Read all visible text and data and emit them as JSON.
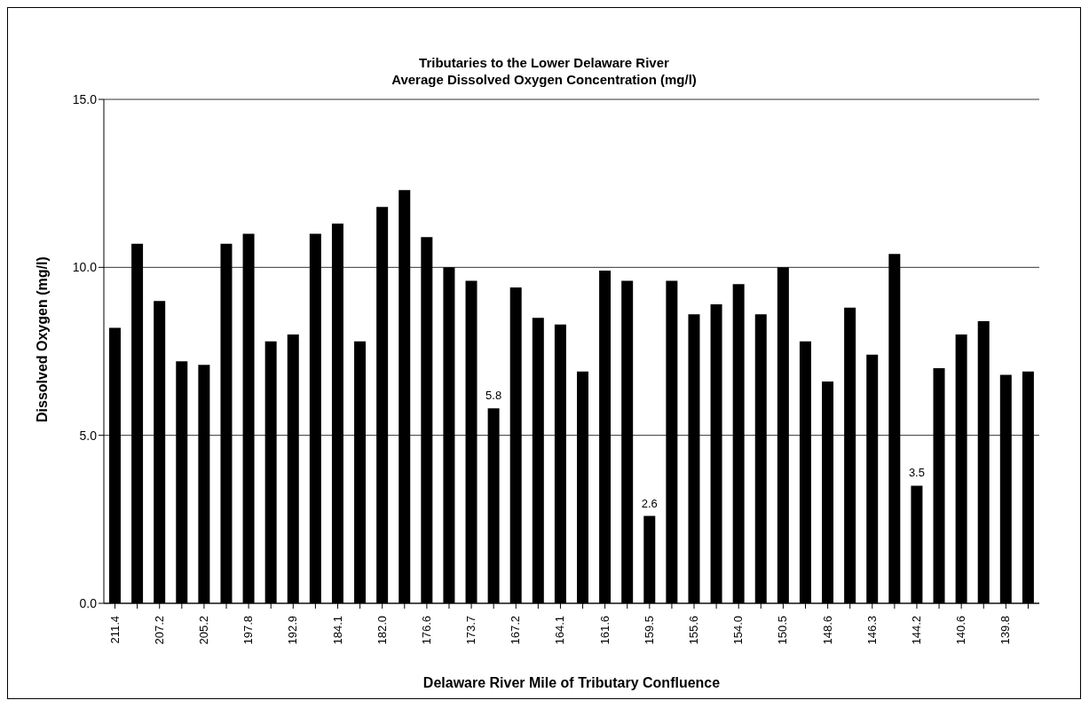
{
  "chart_data": {
    "type": "bar",
    "title": "Tributaries to the Lower Delaware River",
    "subtitle": "Average Dissolved Oxygen Concentration (mg/l)",
    "xlabel": "Delaware River Mile of Tributary Confluence",
    "ylabel": "Dissolved Oxygen (mg/l)",
    "categories": [
      "211.4",
      null,
      "207.2",
      null,
      "205.2",
      null,
      "197.8",
      null,
      "192.9",
      null,
      "184.1",
      null,
      "182.0",
      null,
      "176.6",
      null,
      "173.7",
      null,
      "167.2",
      null,
      "164.1",
      null,
      "161.6",
      null,
      "159.5",
      null,
      "155.6",
      null,
      "154.0",
      null,
      "150.5",
      null,
      "148.6",
      null,
      "146.3",
      null,
      "144.2",
      null,
      "140.6",
      null,
      "139.8",
      null
    ],
    "values": [
      8.2,
      10.7,
      9.0,
      7.2,
      7.1,
      10.7,
      11.0,
      7.8,
      8.0,
      11.0,
      11.3,
      7.8,
      11.8,
      12.3,
      10.9,
      10.0,
      9.6,
      5.8,
      9.4,
      8.5,
      8.3,
      6.9,
      9.9,
      9.6,
      2.6,
      9.6,
      8.6,
      8.9,
      9.5,
      8.6,
      10.0,
      7.8,
      6.6,
      8.8,
      7.4,
      10.4,
      3.5,
      7.0,
      8.0,
      8.4,
      6.8,
      6.9
    ],
    "value_labels": [
      null,
      null,
      null,
      null,
      null,
      null,
      null,
      null,
      null,
      null,
      null,
      null,
      null,
      null,
      null,
      null,
      null,
      "5.8",
      null,
      null,
      null,
      null,
      null,
      null,
      "2.6",
      null,
      null,
      null,
      null,
      null,
      null,
      null,
      null,
      null,
      null,
      null,
      "3.5",
      null,
      null,
      null,
      null,
      null
    ],
    "color": "#000000",
    "ylim": [
      0,
      15
    ],
    "yticks": [
      {
        "value": 0,
        "label": "0.0"
      },
      {
        "value": 5,
        "label": "5.0"
      },
      {
        "value": 10,
        "label": "10.0"
      },
      {
        "value": 15,
        "label": "15.0"
      }
    ],
    "grid": "y",
    "legend": false
  }
}
